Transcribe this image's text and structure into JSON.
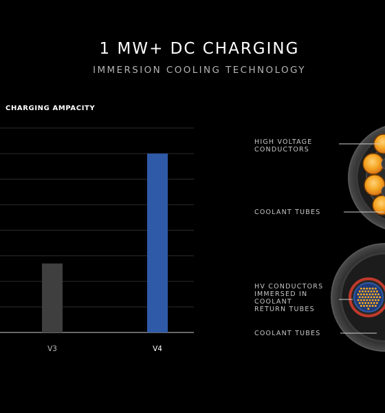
{
  "header": {
    "title": "1 MW+ DC CHARGING",
    "subtitle": "IMMERSION COOLING TECHNOLOGY"
  },
  "chart_data": {
    "type": "bar",
    "title": "CHARGING AMPACITY",
    "categories": [
      "V3",
      "V4"
    ],
    "values": [
      2.7,
      7.0
    ],
    "colors": [
      "#3f3f3f",
      "#2f5aa8"
    ],
    "ylim": [
      0,
      8
    ],
    "gridlines": [
      1,
      2,
      3,
      4,
      5,
      6,
      7,
      8
    ],
    "grid": true
  },
  "diagram": {
    "callouts": [
      {
        "id": "hv",
        "lines": [
          "HIGH VOLTAGE",
          "CONDUCTORS"
        ]
      },
      {
        "id": "ct1",
        "lines": [
          "COOLANT TUBES"
        ]
      },
      {
        "id": "hvc",
        "lines": [
          "HV CONDUCTORS",
          "IMMERSED IN",
          "COOLANT",
          "RETURN TUBES"
        ]
      },
      {
        "id": "ct2",
        "lines": [
          "COOLANT TUBES"
        ]
      }
    ],
    "colors": {
      "cable_jacket": "#3a3a3a",
      "conductor": "#f5a623",
      "coolant_tube": "#c0392b",
      "inner_blue": "#2f5aa8"
    }
  }
}
